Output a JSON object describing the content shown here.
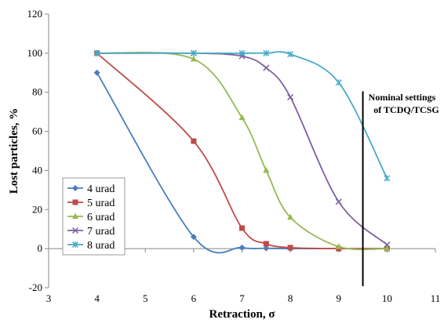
{
  "chart_data": {
    "type": "line",
    "xlabel": "Retraction, σ",
    "ylabel": "Lost particles, %",
    "xlim": [
      3,
      11
    ],
    "ylim": [
      -20,
      120
    ],
    "xticks": [
      3,
      4,
      5,
      6,
      7,
      8,
      9,
      10,
      11
    ],
    "yticks": [
      -20,
      0,
      20,
      40,
      60,
      80,
      100,
      120
    ],
    "grid": false,
    "legend_position": "bottom-left",
    "series": [
      {
        "name": "4 urad",
        "color": "#4a7ebb",
        "marker": "diamond",
        "x": [
          4,
          6,
          7,
          7.5,
          8,
          9,
          10
        ],
        "y": [
          90,
          6,
          0.5,
          0.2,
          0,
          0,
          0
        ]
      },
      {
        "name": "5 urad",
        "color": "#be4b48",
        "marker": "square",
        "x": [
          4,
          6,
          7,
          7.5,
          8,
          9,
          10
        ],
        "y": [
          100,
          55,
          10.5,
          2.5,
          0.5,
          0,
          0
        ]
      },
      {
        "name": "6 urad",
        "color": "#98b954",
        "marker": "triangle",
        "x": [
          4,
          6,
          7,
          7.5,
          8,
          9,
          10
        ],
        "y": [
          100,
          97,
          67,
          40,
          16,
          1,
          0
        ]
      },
      {
        "name": "7 urad",
        "color": "#7d60a0",
        "marker": "x",
        "x": [
          4,
          6,
          7,
          7.5,
          8,
          9,
          10
        ],
        "y": [
          100,
          100,
          98.5,
          92.5,
          77.5,
          24,
          2
        ]
      },
      {
        "name": "8 urad",
        "color": "#46aac5",
        "marker": "star",
        "x": [
          4,
          6,
          7,
          7.5,
          8,
          9,
          10
        ],
        "y": [
          100,
          100,
          100,
          100,
          99.5,
          85,
          36
        ]
      }
    ],
    "annotations": [
      {
        "type": "vertical_line",
        "x": 9.5,
        "color": "#000000"
      },
      {
        "type": "text",
        "lines": [
          "Nominal settings",
          "of TCDQ/TCSG"
        ]
      }
    ]
  }
}
